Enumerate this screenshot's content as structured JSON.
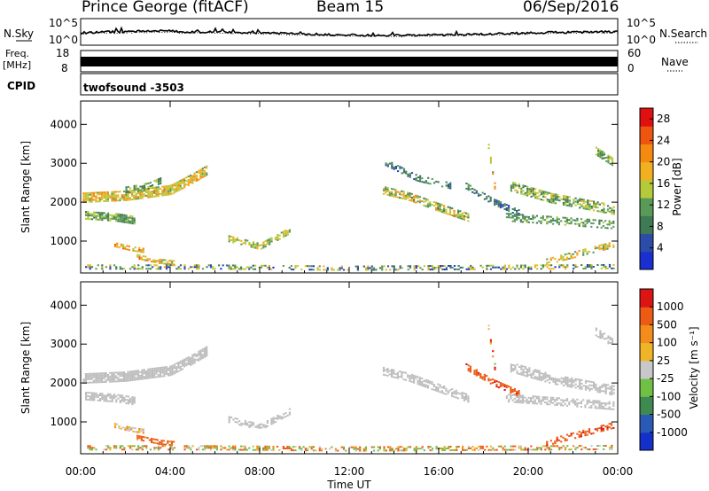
{
  "header": {
    "station": "Prince George (fitACF)",
    "beam": "Beam 15",
    "date": "06/Sep/2016"
  },
  "nsky_panel": {
    "label": "N.Sky",
    "right_label": "N.Search",
    "ticks_left": [
      "10^5",
      "10^0"
    ],
    "ticks_right": [
      "10^5",
      "10^0"
    ]
  },
  "freq_panel": {
    "label_top": "Freq.",
    "label_unit": "[MHz]",
    "ticks_left": [
      "18",
      "8"
    ],
    "right_label": "Nave",
    "ticks_right": [
      "60",
      "0"
    ]
  },
  "cpid_panel": {
    "label": "CPID",
    "program": "twofsound  -3503"
  },
  "colors": {
    "power": [
      "#1a2fd0",
      "#2c4ca8",
      "#3f7a55",
      "#5a9a58",
      "#b5c93a",
      "#f0b020",
      "#f58a10",
      "#ee5510",
      "#e01010"
    ],
    "velocity": [
      "#1530c8",
      "#2a5ab5",
      "#3f8a50",
      "#6fc045",
      "#c8c8c8",
      "#f0b428",
      "#f38c1a",
      "#ec5a14",
      "#dc1414"
    ],
    "ground_scatter": "#bdbdbd"
  },
  "chart_data": [
    {
      "type": "heatmap",
      "name": "power",
      "ylabel": "Slant Range [km]",
      "yticks": [
        "1000",
        "2000",
        "3000",
        "4000"
      ],
      "ylim": [
        180,
        4600
      ],
      "xticks": [
        "00:00",
        "04:00",
        "08:00",
        "12:00",
        "16:00",
        "20:00",
        "00:00"
      ],
      "xlim": [
        0,
        24
      ],
      "colorbar": {
        "label": "Power [dB]",
        "ticks": [
          "4",
          "8",
          "12",
          "16",
          "20",
          "24",
          "28"
        ],
        "range": [
          0,
          30
        ]
      },
      "features": [
        {
          "t": [
            0.1,
            2.0,
            4.0,
            5.0,
            5.6
          ],
          "r": [
            2100,
            2150,
            2300,
            2600,
            2800
          ],
          "w": 240,
          "d": 0.85,
          "c": [
            12,
            22
          ]
        },
        {
          "t": [
            0.2,
            1.5,
            2.4
          ],
          "r": [
            1650,
            1600,
            1520
          ],
          "w": 200,
          "d": 0.75,
          "c": [
            8,
            16
          ]
        },
        {
          "t": [
            2.0,
            3.0,
            3.6
          ],
          "r": [
            2300,
            2400,
            2550
          ],
          "w": 150,
          "d": 0.6,
          "c": [
            8,
            16
          ]
        },
        {
          "t": [
            1.5,
            2.2,
            2.8
          ],
          "r": [
            900,
            800,
            750
          ],
          "w": 120,
          "d": 0.75,
          "c": [
            14,
            24
          ]
        },
        {
          "t": [
            2.5,
            3.5,
            4.2
          ],
          "r": [
            580,
            460,
            420
          ],
          "w": 100,
          "d": 0.7,
          "c": [
            12,
            24
          ]
        },
        {
          "t": [
            0.2,
            6.0,
            12.0,
            18.0,
            23.8
          ],
          "r": [
            330,
            330,
            300,
            320,
            340
          ],
          "w": 130,
          "d": 0.45,
          "c": [
            2,
            20
          ]
        },
        {
          "t": [
            6.6,
            8.0,
            9.3
          ],
          "r": [
            1050,
            850,
            1250
          ],
          "w": 160,
          "d": 0.6,
          "c": [
            12,
            18
          ]
        },
        {
          "t": [
            13.5,
            14.6,
            15.8,
            17.3
          ],
          "r": [
            2300,
            2150,
            1900,
            1600
          ],
          "w": 220,
          "d": 0.65,
          "c": [
            8,
            22
          ]
        },
        {
          "t": [
            13.6,
            15.0,
            16.5
          ],
          "r": [
            3000,
            2600,
            2400
          ],
          "w": 140,
          "d": 0.5,
          "c": [
            4,
            12
          ]
        },
        {
          "t": [
            17.2,
            18.4,
            19.6
          ],
          "r": [
            2400,
            2000,
            1700
          ],
          "w": 150,
          "d": 0.6,
          "c": [
            4,
            12
          ]
        },
        {
          "t": [
            18.2,
            18.5
          ],
          "r": [
            3400,
            2300
          ],
          "w": 160,
          "d": 0.7,
          "c": [
            8,
            22
          ]
        },
        {
          "t": [
            19.2,
            21.0,
            23.8
          ],
          "r": [
            2400,
            2100,
            1800
          ],
          "w": 260,
          "d": 0.65,
          "c": [
            8,
            18
          ]
        },
        {
          "t": [
            19.0,
            21.5,
            23.8
          ],
          "r": [
            1600,
            1500,
            1400
          ],
          "w": 200,
          "d": 0.55,
          "c": [
            8,
            14
          ]
        },
        {
          "t": [
            23.0,
            23.8
          ],
          "r": [
            3300,
            3000
          ],
          "w": 200,
          "d": 0.7,
          "c": [
            8,
            18
          ]
        },
        {
          "t": [
            20.8,
            23.8
          ],
          "r": [
            450,
            900
          ],
          "w": 150,
          "d": 0.5,
          "c": [
            12,
            22
          ]
        }
      ]
    },
    {
      "type": "heatmap",
      "name": "velocity",
      "ylabel": "Slant Range [km]",
      "yticks": [
        "1000",
        "2000",
        "3000",
        "4000"
      ],
      "ylim": [
        180,
        4600
      ],
      "xticks": [
        "00:00",
        "04:00",
        "08:00",
        "12:00",
        "16:00",
        "20:00",
        "00:00"
      ],
      "xlim": [
        0,
        24
      ],
      "xlabel": "Time UT",
      "colorbar": {
        "label": "Velocity [m s⁻¹]",
        "ticks": [
          "1000",
          "500",
          "100",
          "25",
          "-25",
          "-100",
          "-500",
          "-1000"
        ]
      },
      "features": [
        {
          "t": [
            0.1,
            2.0,
            4.0,
            5.0,
            5.6
          ],
          "r": [
            2100,
            2150,
            2300,
            2600,
            2800
          ],
          "w": 240,
          "d": 0.85,
          "k": "gs"
        },
        {
          "t": [
            0.2,
            1.5,
            2.4
          ],
          "r": [
            1650,
            1600,
            1520
          ],
          "w": 200,
          "d": 0.75,
          "k": "gs"
        },
        {
          "t": [
            1.5,
            2.2,
            2.8
          ],
          "r": [
            900,
            800,
            750
          ],
          "w": 120,
          "d": 0.75,
          "v": [
            -100,
            100
          ]
        },
        {
          "t": [
            2.5,
            3.5,
            4.2
          ],
          "r": [
            580,
            460,
            420
          ],
          "w": 100,
          "d": 0.7,
          "v": [
            -500,
            -50
          ]
        },
        {
          "t": [
            0.2,
            6.0,
            12.0,
            18.0,
            23.8
          ],
          "r": [
            330,
            330,
            300,
            320,
            340
          ],
          "w": 130,
          "d": 0.45,
          "v": [
            -300,
            300
          ]
        },
        {
          "t": [
            6.6,
            8.0,
            9.3
          ],
          "r": [
            1050,
            850,
            1250
          ],
          "w": 160,
          "d": 0.6,
          "k": "gs"
        },
        {
          "t": [
            13.5,
            14.6,
            15.8,
            17.3
          ],
          "r": [
            2300,
            2150,
            1900,
            1600
          ],
          "w": 220,
          "d": 0.65,
          "k": "gs"
        },
        {
          "t": [
            17.2,
            18.4,
            19.6
          ],
          "r": [
            2400,
            2000,
            1700
          ],
          "w": 150,
          "d": 0.6,
          "v": [
            -600,
            -100
          ]
        },
        {
          "t": [
            18.2,
            18.5
          ],
          "r": [
            3400,
            2300
          ],
          "w": 160,
          "d": 0.7,
          "v": [
            -800,
            300
          ]
        },
        {
          "t": [
            19.2,
            21.0,
            23.8
          ],
          "r": [
            2400,
            2100,
            1800
          ],
          "w": 260,
          "d": 0.65,
          "k": "gs"
        },
        {
          "t": [
            19.0,
            21.5,
            23.8
          ],
          "r": [
            1600,
            1500,
            1400
          ],
          "w": 200,
          "d": 0.55,
          "k": "gs"
        },
        {
          "t": [
            23.0,
            23.8
          ],
          "r": [
            3300,
            3000
          ],
          "w": 200,
          "d": 0.7,
          "k": "gs"
        },
        {
          "t": [
            20.8,
            23.8
          ],
          "r": [
            450,
            900
          ],
          "w": 150,
          "d": 0.5,
          "v": [
            -600,
            -100
          ]
        }
      ]
    }
  ]
}
